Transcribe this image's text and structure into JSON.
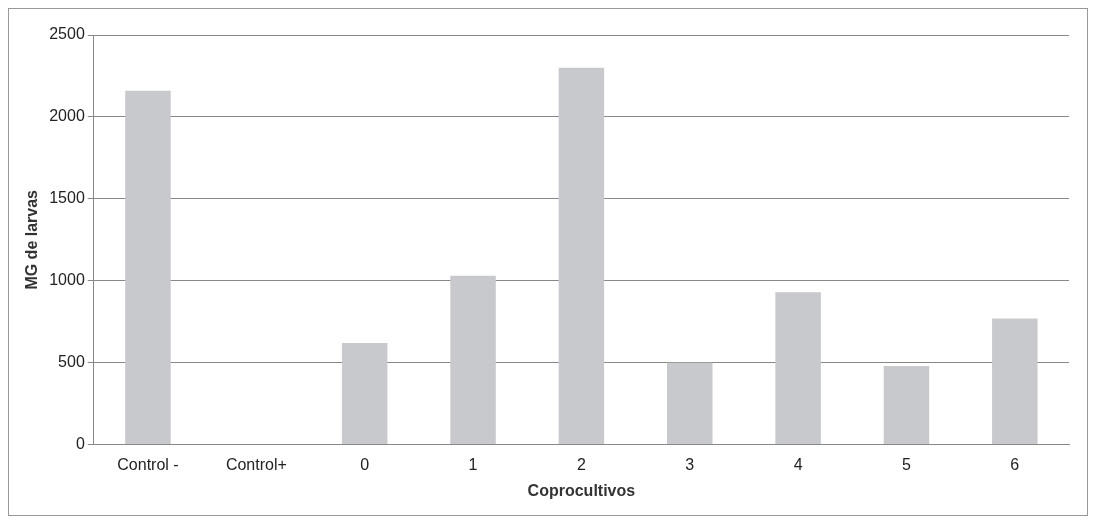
{
  "chart_data": {
    "type": "bar",
    "xlabel": "Coprocultivos",
    "ylabel": "MG de larvas",
    "categories": [
      "Control -",
      "Control+",
      "0",
      "1",
      "2",
      "3",
      "4",
      "5",
      "6"
    ],
    "values": [
      2160,
      0,
      620,
      1030,
      2300,
      500,
      930,
      480,
      770
    ],
    "color": "#c8c9cc",
    "ylim": [
      0,
      2500
    ],
    "yticks": [
      0,
      500,
      1000,
      1500,
      2000,
      2500
    ],
    "grid": "y"
  }
}
